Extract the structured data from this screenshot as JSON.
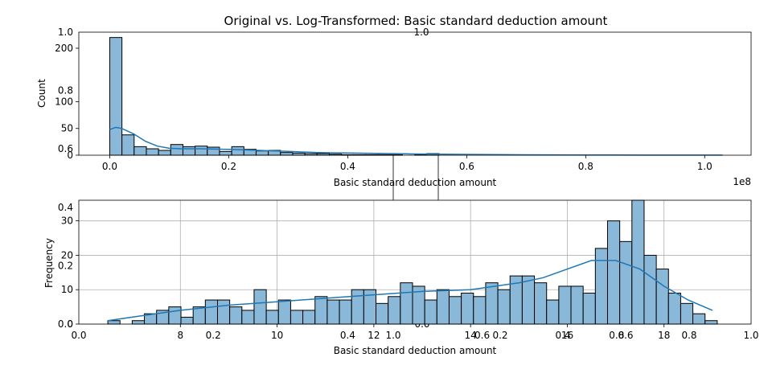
{
  "title": "Original vs. Log-Transformed: Basic standard deduction amount",
  "colors": {
    "bar_fill": "#8ab8d9",
    "bar_edge": "#000000",
    "kde_line": "#1f77b4",
    "grid": "#b0b0b0"
  },
  "chart_data": [
    {
      "type": "bar",
      "kind": "histogram",
      "xlabel": "Basic standard deduction amount",
      "ylabel": "Count",
      "x_offset_label": "1e8",
      "xlim": [
        -0.052,
        1.078
      ],
      "ylim": [
        0,
        230
      ],
      "x_ticks": [
        0.0,
        0.2,
        0.4,
        0.6,
        0.8,
        1.0
      ],
      "y_ticks": [
        0,
        50,
        100,
        200
      ],
      "grid": false,
      "bin_start": 0.0,
      "bin_width": 0.0205,
      "counts": [
        220,
        38,
        16,
        12,
        9,
        20,
        16,
        17,
        15,
        7,
        16,
        11,
        8,
        9,
        5,
        4,
        3,
        3,
        2,
        1,
        1,
        1,
        1,
        1,
        0,
        1,
        3,
        0,
        0,
        0,
        0,
        0,
        0,
        0,
        0,
        0,
        0,
        0,
        0,
        0,
        0,
        0,
        0,
        0,
        0,
        0,
        0,
        0,
        0,
        0
      ],
      "kde": {
        "x": [
          0.0,
          0.01,
          0.02,
          0.04,
          0.06,
          0.08,
          0.1,
          0.12,
          0.15,
          0.2,
          0.25,
          0.3,
          0.35,
          0.4,
          0.5,
          0.6,
          0.7,
          0.8,
          0.9,
          1.0,
          1.03
        ],
        "y": [
          48,
          52,
          50,
          40,
          26,
          17,
          13,
          12,
          12,
          11,
          9,
          7,
          5,
          4,
          2.5,
          1.5,
          0.8,
          0.4,
          0.2,
          0.1,
          0.1
        ]
      }
    },
    {
      "type": "bar",
      "kind": "histogram",
      "xlabel": "Basic standard deduction amount",
      "ylabel": "Frequency",
      "xlim": [
        5.9,
        19.8
      ],
      "ylim": [
        0,
        36
      ],
      "x_ticks": [
        8,
        10,
        12,
        14,
        16,
        18
      ],
      "y_ticks": [
        0,
        10,
        20,
        30
      ],
      "grid": true,
      "bin_start": 6.5,
      "bin_width": 0.252,
      "counts": [
        1,
        0,
        1,
        3,
        4,
        5,
        2,
        5,
        7,
        7,
        5,
        4,
        10,
        4,
        7,
        4,
        4,
        8,
        7,
        7,
        10,
        10,
        6,
        8,
        12,
        11,
        7,
        10,
        8,
        9,
        8,
        12,
        10,
        14,
        14,
        12,
        7,
        11,
        11,
        9,
        22,
        30,
        24,
        36,
        20,
        16,
        9,
        6,
        3,
        1
      ],
      "kde": {
        "x": [
          6.5,
          7.0,
          8.0,
          9.0,
          10.0,
          11.0,
          12.0,
          13.0,
          14.0,
          15.0,
          15.5,
          16.0,
          16.5,
          17.0,
          17.5,
          18.0,
          18.5,
          19.0
        ],
        "y": [
          1,
          2,
          4,
          5.5,
          6.5,
          7.5,
          8.5,
          9.5,
          10,
          12,
          13.5,
          16,
          18.5,
          18.5,
          16,
          11,
          7,
          4
        ]
      }
    }
  ],
  "overlay_axes": {
    "left_ticks": [
      "0.0",
      "0.2",
      "0.4",
      "0.6",
      "0.8",
      "1.0"
    ],
    "bottom_ticks": [
      "0.0",
      "0.2",
      "0.4",
      "0.6",
      "0.8",
      "1.0"
    ],
    "top_ticks": [
      "1.0"
    ],
    "subgrid_ticks": [
      "0.0",
      "0.2",
      "0.4",
      "0.6",
      "0.8",
      "1.0"
    ]
  }
}
